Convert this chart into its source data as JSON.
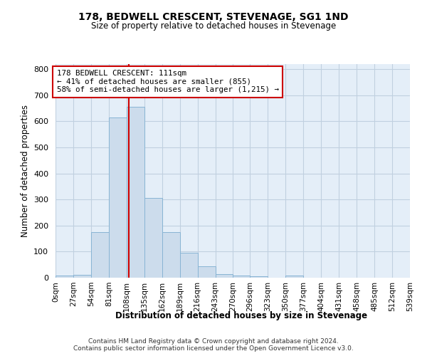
{
  "title": "178, BEDWELL CRESCENT, STEVENAGE, SG1 1ND",
  "subtitle": "Size of property relative to detached houses in Stevenage",
  "xlabel": "Distribution of detached houses by size in Stevenage",
  "ylabel": "Number of detached properties",
  "bar_values": [
    7,
    12,
    175,
    615,
    655,
    305,
    175,
    97,
    43,
    15,
    8,
    5,
    0,
    7,
    0,
    0,
    0,
    0,
    0,
    0
  ],
  "bin_edges": [
    0,
    27,
    54,
    81,
    108,
    135,
    162,
    189,
    216,
    243,
    270,
    296,
    323,
    350,
    377,
    404,
    431,
    458,
    485,
    512,
    539
  ],
  "tick_labels": [
    "0sqm",
    "27sqm",
    "54sqm",
    "81sqm",
    "108sqm",
    "135sqm",
    "162sqm",
    "189sqm",
    "216sqm",
    "243sqm",
    "270sqm",
    "296sqm",
    "323sqm",
    "350sqm",
    "377sqm",
    "404sqm",
    "431sqm",
    "458sqm",
    "485sqm",
    "512sqm",
    "539sqm"
  ],
  "bar_color": "#ccdcec",
  "bar_edge_color": "#88b4d4",
  "property_size": 111,
  "vline_color": "#cc0000",
  "annotation_box_color": "#cc0000",
  "annotation_text": "178 BEDWELL CRESCENT: 111sqm\n← 41% of detached houses are smaller (855)\n58% of semi-detached houses are larger (1,215) →",
  "ylim": [
    0,
    820
  ],
  "yticks": [
    0,
    100,
    200,
    300,
    400,
    500,
    600,
    700,
    800
  ],
  "grid_color": "#c0d0e0",
  "bg_color": "#e4eef8",
  "footer_line1": "Contains HM Land Registry data © Crown copyright and database right 2024.",
  "footer_line2": "Contains public sector information licensed under the Open Government Licence v3.0."
}
